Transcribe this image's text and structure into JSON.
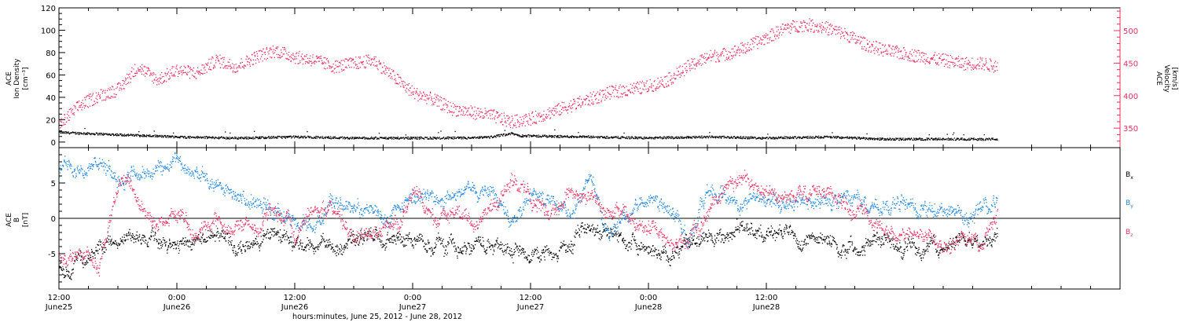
{
  "chart_data": [
    {
      "type": "scatter",
      "panel": "top",
      "left_axis": {
        "label_lines": [
          "ACE",
          "Ion Density"
        ],
        "unit": "[cm⁻³]",
        "range": [
          -5,
          120
        ],
        "ticks": [
          "0",
          "20",
          "40",
          "60",
          "80",
          "100",
          "120"
        ],
        "color": "#000000"
      },
      "right_axis": {
        "label_lines": [
          "ACE",
          "Velocity"
        ],
        "unit": "[km/s]",
        "range": [
          320,
          535
        ],
        "ticks": [
          "350",
          "400",
          "450",
          "500"
        ],
        "color": "#e8305f"
      },
      "series": [
        {
          "color": "#000000",
          "axis": "left",
          "points": [
            [
              0,
              9
            ],
            [
              3,
              8
            ],
            [
              6,
              7
            ],
            [
              12,
              5
            ],
            [
              18,
              4
            ],
            [
              24,
              5
            ],
            [
              30,
              4
            ],
            [
              36,
              4
            ],
            [
              42,
              4
            ],
            [
              44,
              5
            ],
            [
              46,
              8
            ],
            [
              47,
              6
            ],
            [
              54,
              5
            ],
            [
              60,
              4
            ],
            [
              66,
              5
            ],
            [
              72,
              4
            ],
            [
              78,
              5
            ],
            [
              84,
              3
            ],
            [
              90,
              3
            ],
            [
              95.5,
              3
            ]
          ]
        },
        {
          "color": "#e8305f",
          "axis": "right",
          "points": [
            [
              0,
              355
            ],
            [
              2,
              385
            ],
            [
              4,
              400
            ],
            [
              6,
              410
            ],
            [
              8,
              445
            ],
            [
              10,
              425
            ],
            [
              12,
              440
            ],
            [
              14,
              435
            ],
            [
              16,
              455
            ],
            [
              18,
              445
            ],
            [
              20,
              460
            ],
            [
              22,
              470
            ],
            [
              24,
              460
            ],
            [
              26,
              455
            ],
            [
              28,
              445
            ],
            [
              30,
              450
            ],
            [
              32,
              455
            ],
            [
              34,
              430
            ],
            [
              36,
              405
            ],
            [
              38,
              395
            ],
            [
              40,
              380
            ],
            [
              42,
              375
            ],
            [
              44,
              370
            ],
            [
              46,
              360
            ],
            [
              48,
              365
            ],
            [
              50,
              375
            ],
            [
              52,
              385
            ],
            [
              54,
              395
            ],
            [
              56,
              405
            ],
            [
              58,
              410
            ],
            [
              60,
              415
            ],
            [
              62,
              425
            ],
            [
              64,
              445
            ],
            [
              66,
              460
            ],
            [
              68,
              465
            ],
            [
              70,
              475
            ],
            [
              72,
              490
            ],
            [
              74,
              505
            ],
            [
              76,
              510
            ],
            [
              78,
              505
            ],
            [
              80,
              495
            ],
            [
              82,
              480
            ],
            [
              84,
              470
            ],
            [
              86,
              465
            ],
            [
              88,
              460
            ],
            [
              90,
              455
            ],
            [
              92,
              450
            ],
            [
              94,
              450
            ],
            [
              95.5,
              445
            ]
          ]
        }
      ]
    },
    {
      "type": "scatter",
      "panel": "bottom",
      "left_axis": {
        "label_lines": [
          "ACE",
          "B"
        ],
        "unit": "[nT]",
        "range": [
          -10,
          10
        ],
        "ticks": [
          "-5",
          "0",
          "5"
        ],
        "color": "#000000"
      },
      "zero_line": true,
      "series": [
        {
          "name": "B",
          "subscript": "x",
          "color": "#000000",
          "points": [
            [
              0,
              -6
            ],
            [
              1,
              -7.5
            ],
            [
              2,
              -6
            ],
            [
              4,
              -4
            ],
            [
              6,
              -3
            ],
            [
              8,
              -3
            ],
            [
              10,
              -3
            ],
            [
              12,
              -4
            ],
            [
              14,
              -3
            ],
            [
              16,
              -2
            ],
            [
              18,
              -4
            ],
            [
              20,
              -3
            ],
            [
              22,
              -2
            ],
            [
              24,
              -4
            ],
            [
              26,
              -4
            ],
            [
              28,
              -4
            ],
            [
              30,
              -3
            ],
            [
              32,
              -3
            ],
            [
              34,
              -3
            ],
            [
              36,
              -3
            ],
            [
              38,
              -4
            ],
            [
              40,
              -4
            ],
            [
              42,
              -4
            ],
            [
              44,
              -3
            ],
            [
              46,
              -4
            ],
            [
              48,
              -5
            ],
            [
              50,
              -4
            ],
            [
              52,
              -4
            ],
            [
              54,
              -2
            ],
            [
              56,
              -2
            ],
            [
              58,
              -3
            ],
            [
              60,
              -4
            ],
            [
              62,
              -5
            ],
            [
              64,
              -4
            ],
            [
              66,
              -3
            ],
            [
              68,
              -2
            ],
            [
              70,
              -1
            ],
            [
              72,
              -2
            ],
            [
              74,
              -2
            ],
            [
              76,
              -3
            ],
            [
              78,
              -3
            ],
            [
              80,
              -4
            ],
            [
              82,
              -3
            ],
            [
              84,
              -3
            ],
            [
              86,
              -4
            ],
            [
              88,
              -4
            ],
            [
              90,
              -4
            ],
            [
              92,
              -3
            ],
            [
              94,
              -3
            ],
            [
              95.5,
              -2
            ]
          ]
        },
        {
          "name": "B",
          "subscript": "y",
          "color": "#1f86e0",
          "points": [
            [
              0,
              6
            ],
            [
              1,
              8
            ],
            [
              2,
              7
            ],
            [
              4,
              7.5
            ],
            [
              6,
              6
            ],
            [
              8,
              6
            ],
            [
              10,
              6.5
            ],
            [
              12,
              7.5
            ],
            [
              14,
              6
            ],
            [
              16,
              5
            ],
            [
              18,
              3
            ],
            [
              20,
              2
            ],
            [
              22,
              1
            ],
            [
              24,
              0
            ],
            [
              26,
              -1
            ],
            [
              28,
              2
            ],
            [
              30,
              1
            ],
            [
              32,
              1
            ],
            [
              34,
              0
            ],
            [
              36,
              3
            ],
            [
              38,
              3
            ],
            [
              40,
              3
            ],
            [
              42,
              4
            ],
            [
              44,
              5
            ],
            [
              46,
              -1
            ],
            [
              48,
              3
            ],
            [
              50,
              2
            ],
            [
              52,
              1
            ],
            [
              54,
              6
            ],
            [
              56,
              -3
            ],
            [
              58,
              1
            ],
            [
              60,
              4
            ],
            [
              62,
              2
            ],
            [
              64,
              -3
            ],
            [
              66,
              4
            ],
            [
              68,
              3
            ],
            [
              70,
              3
            ],
            [
              72,
              3
            ],
            [
              74,
              2
            ],
            [
              76,
              3
            ],
            [
              78,
              2
            ],
            [
              80,
              3
            ],
            [
              82,
              2
            ],
            [
              84,
              1
            ],
            [
              86,
              2
            ],
            [
              88,
              1
            ],
            [
              90,
              1
            ],
            [
              92,
              0
            ],
            [
              94,
              2
            ],
            [
              95.5,
              3
            ]
          ]
        },
        {
          "name": "B",
          "subscript": "z",
          "color": "#e8305f",
          "points": [
            [
              0,
              -5
            ],
            [
              1,
              -6
            ],
            [
              2,
              -5
            ],
            [
              3,
              -5
            ],
            [
              4,
              -7
            ],
            [
              6,
              6
            ],
            [
              8,
              2
            ],
            [
              10,
              -1
            ],
            [
              12,
              1
            ],
            [
              14,
              -2
            ],
            [
              16,
              0
            ],
            [
              18,
              -1
            ],
            [
              20,
              -1
            ],
            [
              22,
              1
            ],
            [
              24,
              -2
            ],
            [
              26,
              2
            ],
            [
              28,
              1
            ],
            [
              30,
              -3
            ],
            [
              32,
              -2
            ],
            [
              34,
              -1
            ],
            [
              36,
              3
            ],
            [
              38,
              0
            ],
            [
              40,
              1
            ],
            [
              42,
              0
            ],
            [
              44,
              2
            ],
            [
              46,
              6
            ],
            [
              48,
              3
            ],
            [
              50,
              1
            ],
            [
              52,
              4
            ],
            [
              54,
              3
            ],
            [
              56,
              1
            ],
            [
              58,
              0
            ],
            [
              60,
              -1
            ],
            [
              62,
              -4
            ],
            [
              64,
              -3
            ],
            [
              66,
              1
            ],
            [
              68,
              5
            ],
            [
              70,
              6
            ],
            [
              72,
              4
            ],
            [
              74,
              3
            ],
            [
              76,
              4
            ],
            [
              78,
              4
            ],
            [
              80,
              2
            ],
            [
              82,
              1
            ],
            [
              84,
              -2
            ],
            [
              86,
              -2
            ],
            [
              88,
              -2
            ],
            [
              90,
              -3
            ],
            [
              92,
              -3
            ],
            [
              94,
              -3
            ],
            [
              95.5,
              0
            ]
          ]
        }
      ],
      "legend": [
        {
          "text": "B",
          "subscript": "x",
          "color": "#000000"
        },
        {
          "text": "B",
          "subscript": "y",
          "color": "#1f86e0"
        },
        {
          "text": "B",
          "subscript": "z",
          "color": "#e8305f"
        }
      ]
    }
  ],
  "x_axis": {
    "range_hours": [
      0,
      108
    ],
    "ticks": [
      {
        "h": 0,
        "time": "12:00",
        "date": "June25"
      },
      {
        "h": 12,
        "time": "0:00",
        "date": "June26"
      },
      {
        "h": 24,
        "time": "12:00",
        "date": "June26"
      },
      {
        "h": 36,
        "time": "0:00",
        "date": "June27"
      },
      {
        "h": 48,
        "time": "12:00",
        "date": "June27"
      },
      {
        "h": 60,
        "time": "0:00",
        "date": "June28"
      },
      {
        "h": 72,
        "time": "12:00",
        "date": "June28"
      }
    ],
    "label": "hours:minutes, June 25, 2012 - June 28, 2012"
  }
}
